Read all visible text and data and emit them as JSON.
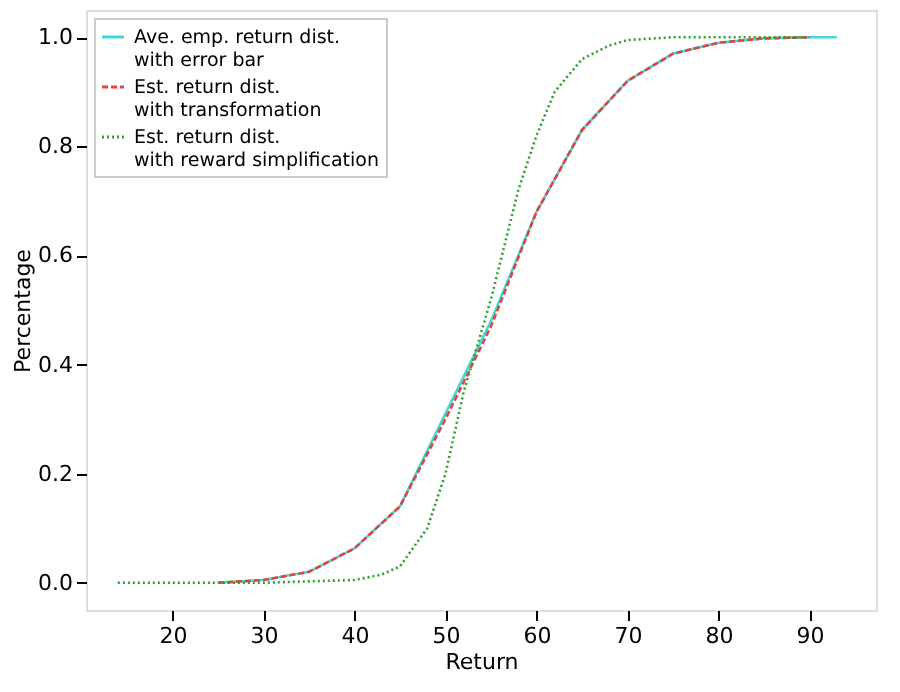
{
  "chart_data": {
    "type": "line",
    "xlabel": "Return",
    "ylabel": "Percentage",
    "xlim": [
      10.5,
      97.3
    ],
    "ylim": [
      -0.05,
      1.05
    ],
    "xticks": [
      20,
      30,
      40,
      50,
      60,
      70,
      80,
      90
    ],
    "yticks": [
      {
        "value": 0,
        "label": "0.0"
      },
      0.2,
      0.4,
      0.6,
      0.8,
      {
        "value": 1,
        "label": "1.0"
      }
    ],
    "grid": false,
    "legend": "top left",
    "series": [
      {
        "name": "Ave. emp. return dist.\nwith error bar",
        "color": "#40d8d8",
        "line_style": "solid",
        "x": [
          25,
          30,
          35,
          40,
          45,
          50,
          55,
          60,
          65,
          70,
          75,
          80,
          85,
          90,
          93
        ],
        "values": [
          0.0,
          0.005,
          0.02,
          0.063,
          0.14,
          0.31,
          0.48,
          0.68,
          0.83,
          0.92,
          0.97,
          0.99,
          0.998,
          1.0,
          1.0
        ]
      },
      {
        "name": "Est. return dist.\nwith transformation",
        "color": "#e8413a",
        "line_style": "dashed",
        "x": [
          25,
          30,
          35,
          40,
          45,
          50,
          55,
          60,
          65,
          70,
          75,
          80,
          85,
          90
        ],
        "values": [
          0.0,
          0.005,
          0.02,
          0.063,
          0.14,
          0.3,
          0.47,
          0.68,
          0.83,
          0.92,
          0.97,
          0.99,
          0.998,
          1.0
        ]
      },
      {
        "name": "Est. return dist.\nwith reward simplification",
        "color": "#2ca02c",
        "line_style": "dotted",
        "x": [
          14,
          20,
          30,
          40,
          43,
          45,
          48,
          50,
          52,
          55,
          58,
          60,
          62,
          65,
          68,
          70,
          75,
          80,
          90
        ],
        "values": [
          0.0,
          0.0,
          0.0,
          0.005,
          0.015,
          0.03,
          0.1,
          0.2,
          0.35,
          0.52,
          0.72,
          0.82,
          0.9,
          0.96,
          0.985,
          0.995,
          1.0,
          1.0,
          1.0
        ]
      }
    ]
  }
}
